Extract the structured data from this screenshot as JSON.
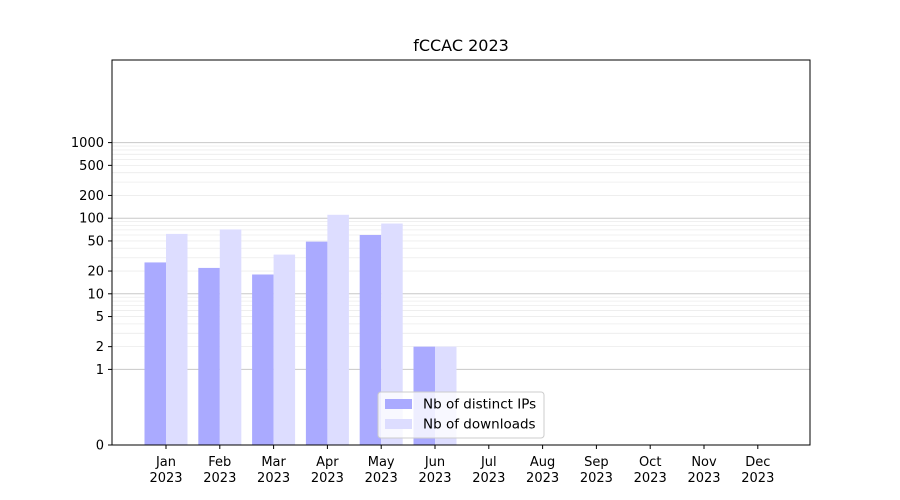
{
  "chart_data": {
    "type": "bar",
    "title": "fCCAC 2023",
    "xlabel": "",
    "ylabel": "",
    "y_scale": "symlog",
    "y_ticks": [
      0,
      1,
      2,
      5,
      10,
      20,
      50,
      100,
      200,
      500,
      1000
    ],
    "y_tick_labels": [
      "0",
      "1",
      "2",
      "5",
      "10",
      "20",
      "50",
      "100",
      "200",
      "500",
      "1000"
    ],
    "categories": [
      "Jan\n2023",
      "Feb\n2023",
      "Mar\n2023",
      "Apr\n2023",
      "May\n2023",
      "Jun\n2023",
      "Jul\n2023",
      "Aug\n2023",
      "Sep\n2023",
      "Oct\n2023",
      "Nov\n2023",
      "Dec\n2023"
    ],
    "category_lines": [
      [
        "Jan",
        "2023"
      ],
      [
        "Feb",
        "2023"
      ],
      [
        "Mar",
        "2023"
      ],
      [
        "Apr",
        "2023"
      ],
      [
        "May",
        "2023"
      ],
      [
        "Jun",
        "2023"
      ],
      [
        "Jul",
        "2023"
      ],
      [
        "Aug",
        "2023"
      ],
      [
        "Sep",
        "2023"
      ],
      [
        "Oct",
        "2023"
      ],
      [
        "Nov",
        "2023"
      ],
      [
        "Dec",
        "2023"
      ]
    ],
    "series": [
      {
        "name": "Nb of distinct IPs",
        "color": "#aaaaff",
        "values": [
          26,
          22,
          18,
          49,
          60,
          2,
          0,
          0,
          0,
          0,
          0,
          0
        ]
      },
      {
        "name": "Nb of downloads",
        "color": "#ddddff",
        "values": [
          62,
          71,
          33,
          111,
          85,
          2,
          0,
          0,
          0,
          0,
          0,
          0
        ]
      }
    ],
    "grid": true,
    "legend_position": "lower center"
  }
}
